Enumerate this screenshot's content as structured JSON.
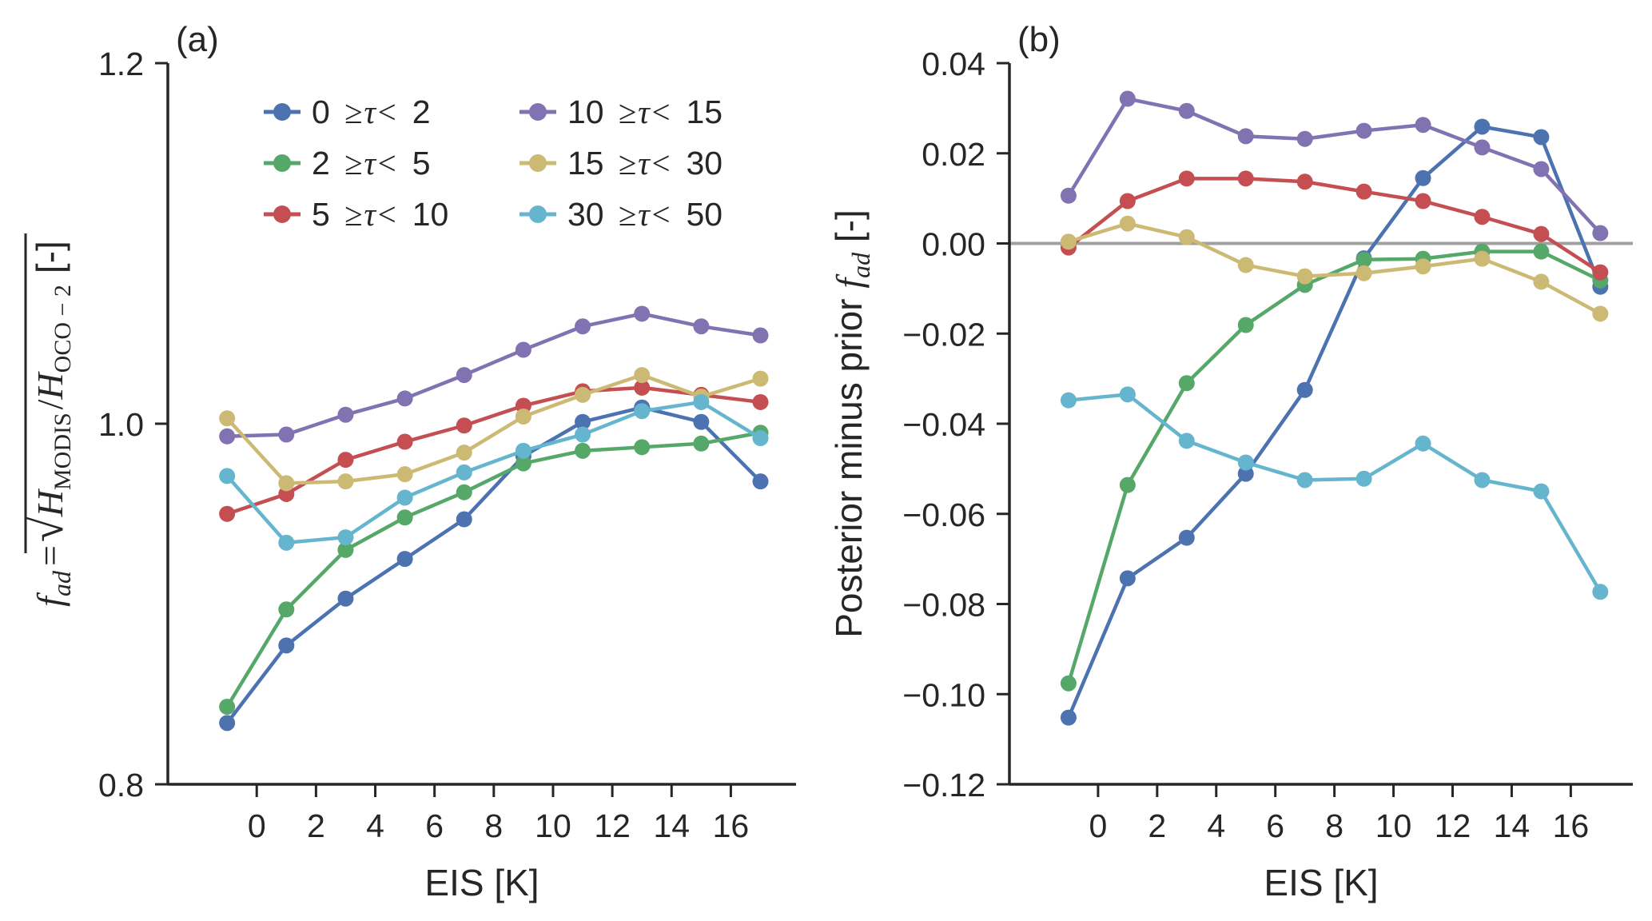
{
  "figure": {
    "panels": [
      "(a)",
      "(b)"
    ]
  },
  "legend": {
    "placement": "upper-right of panel (a), two columns",
    "entries": [
      {
        "lo": "0",
        "rel": "≥",
        "sym": "τ",
        "lt": "<",
        "hi": "2",
        "color": "#4C72B0"
      },
      {
        "lo": "2",
        "rel": "≥",
        "sym": "τ",
        "lt": "<",
        "hi": "5",
        "color": "#55A868"
      },
      {
        "lo": "5",
        "rel": "≥",
        "sym": "τ",
        "lt": "<",
        "hi": "10",
        "color": "#C44E52"
      },
      {
        "lo": "10",
        "rel": "≥",
        "sym": "τ",
        "lt": "<",
        "hi": "15",
        "color": "#8172B2"
      },
      {
        "lo": "15",
        "rel": "≥",
        "sym": "τ",
        "lt": "<",
        "hi": "30",
        "color": "#CCB974"
      },
      {
        "lo": "30",
        "rel": "≥",
        "sym": "τ",
        "lt": "<",
        "hi": "50",
        "color": "#64B5CD"
      }
    ]
  },
  "chart_data": [
    {
      "type": "line",
      "panel_label": "(a)",
      "title": "",
      "xlabel": "EIS [K]",
      "ylabel": "f_ad = sqrt(H_MODIS / H_OCO-2) [-]",
      "ylabel_parts": {
        "f": "f",
        "sub_ad": "ad",
        "eq": "=",
        "H1": "H",
        "sub1": "MODIS",
        "slash": "/",
        "H2": "H",
        "sub2": "OCO − 2",
        "unit": "[-]"
      },
      "xlim": [
        -3,
        18.2
      ],
      "ylim": [
        0.8,
        1.2
      ],
      "xticks": [
        0,
        2,
        4,
        6,
        8,
        10,
        12,
        14,
        16
      ],
      "xtick_labels": [
        "0",
        "2",
        "4",
        "6",
        "8",
        "10",
        "12",
        "14",
        "16"
      ],
      "yticks": [
        0.8,
        1.0,
        1.2
      ],
      "ytick_labels": [
        "0.8",
        "1.0",
        "1.2"
      ],
      "grid": false,
      "legend": "top-right",
      "x": [
        -1,
        1,
        3,
        5,
        7,
        9,
        11,
        13,
        15,
        17
      ],
      "series": [
        {
          "name": "0 ≥τ< 2",
          "color": "#4C72B0",
          "values": [
            0.834,
            0.877,
            0.903,
            0.925,
            0.947,
            0.982,
            1.001,
            1.009,
            1.001,
            0.968
          ]
        },
        {
          "name": "2 ≥τ< 5",
          "color": "#55A868",
          "values": [
            0.843,
            0.897,
            0.93,
            0.948,
            0.962,
            0.978,
            0.985,
            0.987,
            0.989,
            0.995
          ]
        },
        {
          "name": "5 ≥τ< 10",
          "color": "#C44E52",
          "values": [
            0.95,
            0.961,
            0.98,
            0.99,
            0.999,
            1.01,
            1.018,
            1.02,
            1.016,
            1.012
          ]
        },
        {
          "name": "10 ≥τ< 15",
          "color": "#8172B2",
          "values": [
            0.993,
            0.994,
            1.005,
            1.014,
            1.027,
            1.041,
            1.054,
            1.061,
            1.054,
            1.049
          ]
        },
        {
          "name": "15 ≥τ< 30",
          "color": "#CCB974",
          "values": [
            1.003,
            0.967,
            0.968,
            0.972,
            0.984,
            1.004,
            1.016,
            1.027,
            1.015,
            1.025
          ]
        },
        {
          "name": "30 ≥τ< 50",
          "color": "#64B5CD",
          "values": [
            0.971,
            0.934,
            0.937,
            0.959,
            0.973,
            0.985,
            0.994,
            1.007,
            1.012,
            0.992
          ]
        }
      ]
    },
    {
      "type": "line",
      "panel_label": "(b)",
      "title": "",
      "xlabel": "EIS [K]",
      "ylabel": "Posterior minus prior f_ad [-]",
      "ylabel_parts": {
        "text": "Posterior minus prior ",
        "f": "f",
        "sub_ad": "ad",
        "unit": " [-]"
      },
      "xlim": [
        -3,
        18.1
      ],
      "ylim": [
        -0.12,
        0.04
      ],
      "xticks": [
        0,
        2,
        4,
        6,
        8,
        10,
        12,
        14,
        16
      ],
      "xtick_labels": [
        "0",
        "2",
        "4",
        "6",
        "8",
        "10",
        "12",
        "14",
        "16"
      ],
      "yticks": [
        -0.12,
        -0.1,
        -0.08,
        -0.06,
        -0.04,
        -0.02,
        0.0,
        0.02,
        0.04
      ],
      "ytick_labels": [
        "−0.12",
        "−0.10",
        "−0.08",
        "−0.06",
        "−0.04",
        "−0.02",
        "0.00",
        "0.02",
        "0.04"
      ],
      "grid": false,
      "reference_line": {
        "y": 0.0,
        "color": "#a0a0a0"
      },
      "x": [
        -1,
        1,
        3,
        5,
        7,
        9,
        11,
        13,
        15,
        17
      ],
      "series": [
        {
          "name": "0 ≥τ< 2",
          "color": "#4C72B0",
          "values": [
            -0.1052,
            -0.0743,
            -0.0653,
            -0.0511,
            -0.0325,
            -0.0033,
            0.0145,
            0.0259,
            0.0236,
            -0.0096
          ]
        },
        {
          "name": "2 ≥τ< 5",
          "color": "#55A868",
          "values": [
            -0.0976,
            -0.0536,
            -0.031,
            -0.0181,
            -0.0092,
            -0.0036,
            -0.0034,
            -0.0018,
            -0.0018,
            -0.0082
          ]
        },
        {
          "name": "5 ≥τ< 10",
          "color": "#C44E52",
          "values": [
            -0.0009,
            0.0094,
            0.0144,
            0.0144,
            0.0137,
            0.0115,
            0.0094,
            0.0059,
            0.0021,
            -0.0064
          ]
        },
        {
          "name": "10 ≥τ< 15",
          "color": "#8172B2",
          "values": [
            0.0106,
            0.0321,
            0.0294,
            0.0238,
            0.0232,
            0.025,
            0.0263,
            0.0213,
            0.0165,
            0.0023
          ]
        },
        {
          "name": "15 ≥τ< 30",
          "color": "#CCB974",
          "values": [
            0.0004,
            0.0044,
            0.0014,
            -0.0048,
            -0.0073,
            -0.0066,
            -0.0051,
            -0.0034,
            -0.0085,
            -0.0156
          ]
        },
        {
          "name": "30 ≥τ< 50",
          "color": "#64B5CD",
          "values": [
            -0.0348,
            -0.0335,
            -0.0438,
            -0.0486,
            -0.0525,
            -0.0522,
            -0.0444,
            -0.0525,
            -0.055,
            -0.0773
          ]
        }
      ]
    }
  ]
}
